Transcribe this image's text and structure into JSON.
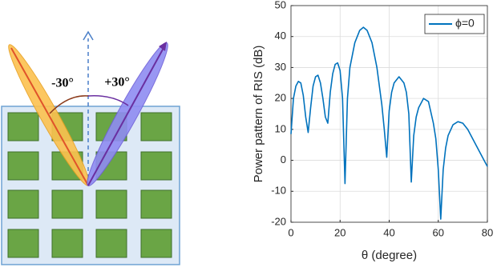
{
  "diagram": {
    "labels": [
      "-30°",
      "+30°"
    ]
  },
  "chart_data": {
    "type": "line",
    "xlabel": "θ (degree)",
    "ylabel": "Power pattern of RIS (dB)",
    "x": [
      0,
      1,
      2,
      3,
      4,
      5,
      6,
      7,
      8,
      9,
      10,
      11,
      12,
      13,
      14,
      15,
      16,
      17,
      18,
      19,
      20,
      21,
      22,
      23,
      24,
      26,
      28,
      29.5,
      31,
      33,
      35,
      37,
      38,
      39,
      40,
      41,
      42,
      44,
      46,
      47,
      48,
      49,
      50,
      51,
      52,
      54,
      56,
      58,
      59,
      60,
      61,
      62,
      63,
      64,
      66,
      68,
      70,
      72,
      74,
      76,
      78,
      80
    ],
    "series": [
      {
        "name": "ϕ=0",
        "color": "#0072bd",
        "values": [
          8.5,
          20,
          24,
          25.5,
          25,
          21,
          14,
          9,
          17,
          24,
          27,
          27.5,
          25,
          20,
          14,
          12,
          22,
          28,
          31,
          31.5,
          29,
          20,
          -7.5,
          20,
          30,
          38,
          42,
          43,
          42,
          38,
          30,
          18,
          10,
          1,
          16,
          22,
          25,
          27,
          25,
          22,
          15,
          -7,
          8,
          14,
          17,
          20,
          19,
          12,
          7,
          -3,
          -19,
          -3,
          4,
          8,
          11.5,
          12.5,
          12,
          10,
          7,
          4,
          1,
          -2
        ]
      }
    ],
    "xlim": [
      0,
      80
    ],
    "xticks": [
      0,
      20,
      40,
      60,
      80
    ],
    "ylim": [
      -20,
      50
    ],
    "yticks": [
      -20,
      -10,
      0,
      10,
      20,
      30,
      40,
      50
    ],
    "grid": true,
    "legend": "upper right"
  }
}
